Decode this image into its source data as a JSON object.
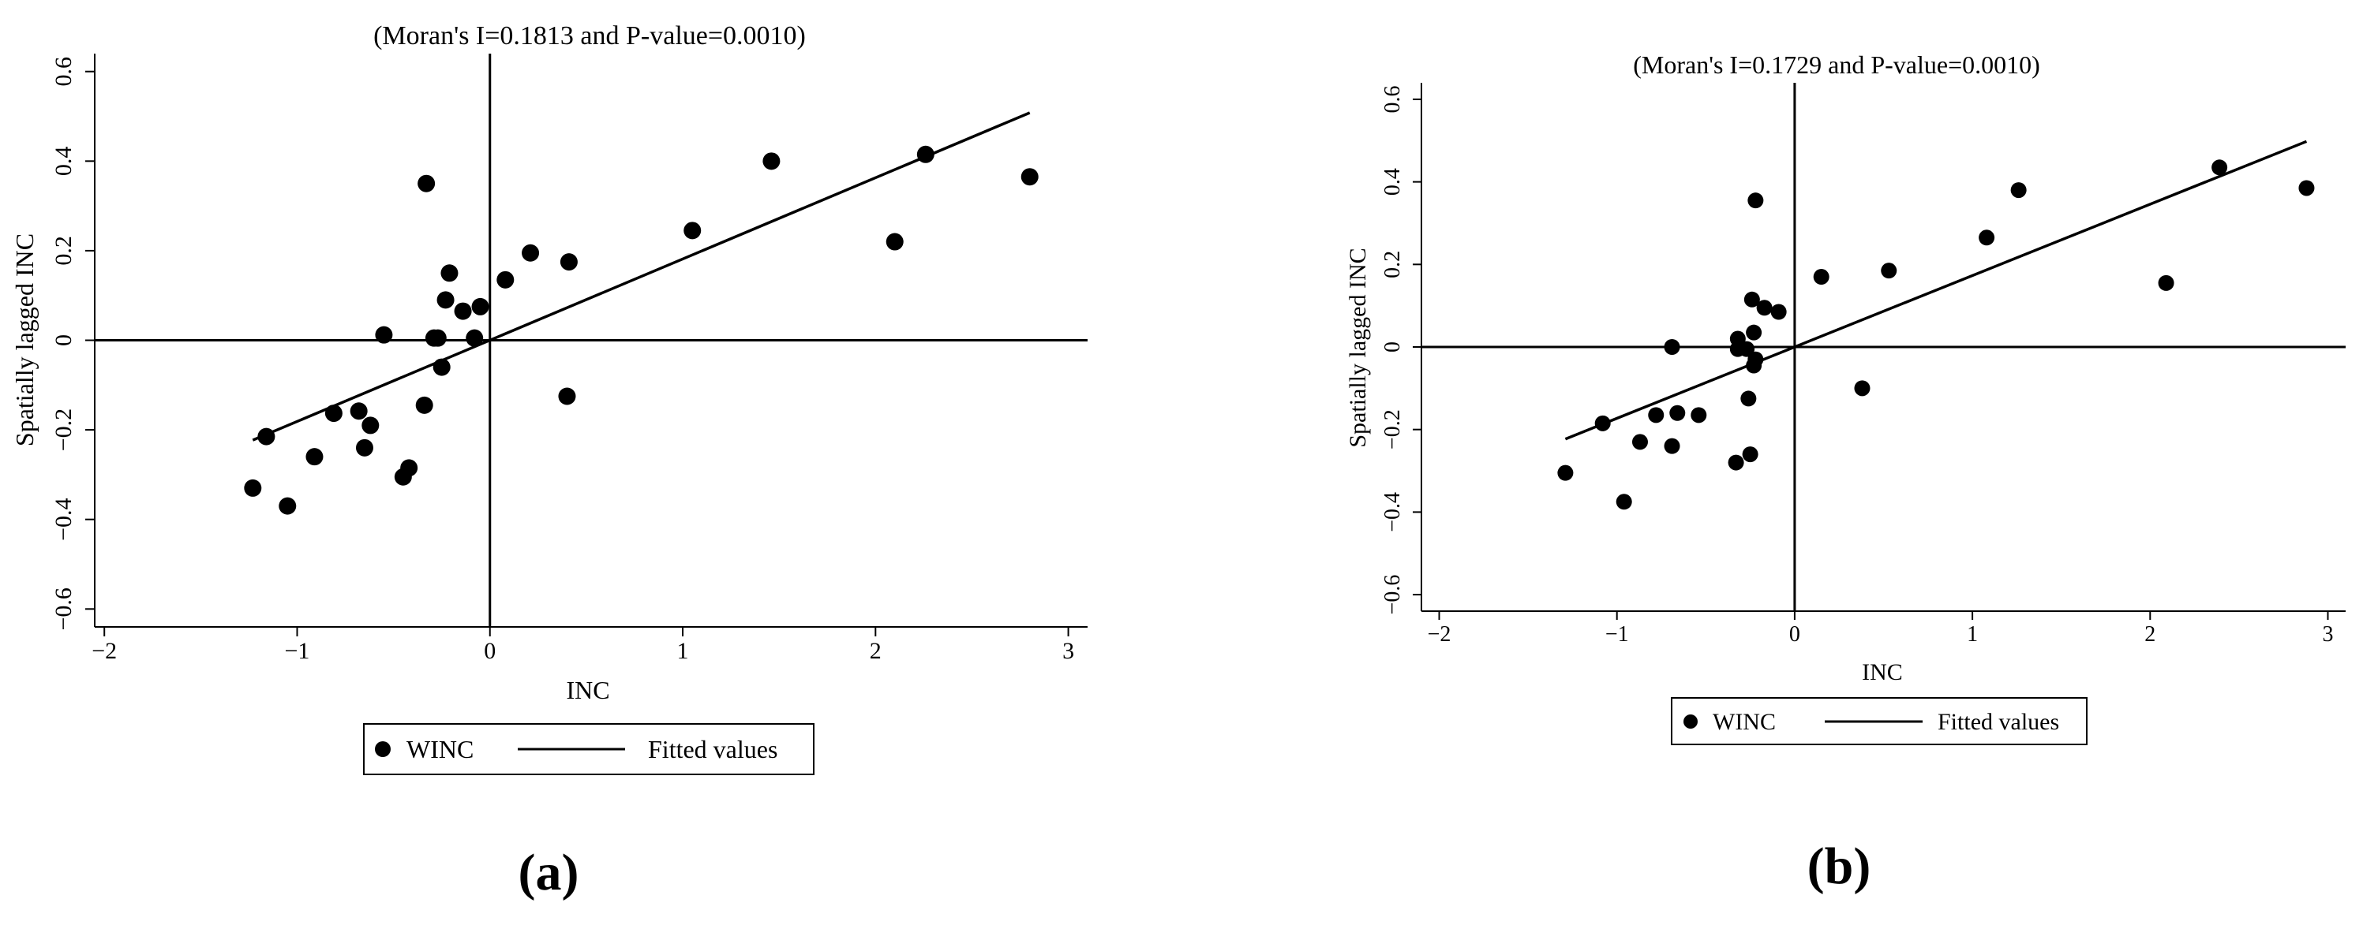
{
  "chart_data": [
    {
      "type": "scatter",
      "panel_label": "(a)",
      "title": "(Moran's I=0.1813 and P-value=0.0010)",
      "xlabel": "INC",
      "ylabel": "Spatially lagged INC",
      "xlim": [
        -2.05,
        3.1
      ],
      "ylim": [
        -0.64,
        0.64
      ],
      "xticks": [
        -2,
        -1,
        0,
        1,
        2,
        3
      ],
      "yticks": [
        -0.6,
        -0.4,
        -0.2,
        0,
        0.2,
        0.4,
        0.6
      ],
      "xtick_labels": [
        "−2",
        "−1",
        "0",
        "1",
        "2",
        "3"
      ],
      "ytick_labels": [
        "−0.6",
        "−0.4",
        "−0.2",
        "0",
        "0.2",
        "0.4",
        "0.6"
      ],
      "reference_lines": {
        "x": 0,
        "y": 0
      },
      "legend": {
        "position": "bottom",
        "entries": [
          "WINC",
          "Fitted values"
        ]
      },
      "series": [
        {
          "name": "WINC",
          "kind": "points",
          "points": [
            [
              -1.23,
              -0.33
            ],
            [
              -1.16,
              -0.215
            ],
            [
              -1.05,
              -0.37
            ],
            [
              -0.91,
              -0.26
            ],
            [
              -0.81,
              -0.163
            ],
            [
              -0.68,
              -0.158
            ],
            [
              -0.65,
              -0.24
            ],
            [
              -0.62,
              -0.19
            ],
            [
              -0.55,
              0.012
            ],
            [
              -0.45,
              -0.305
            ],
            [
              -0.42,
              -0.285
            ],
            [
              -0.34,
              -0.145
            ],
            [
              -0.33,
              0.35
            ],
            [
              -0.29,
              0.005
            ],
            [
              -0.27,
              0.005
            ],
            [
              -0.25,
              -0.06
            ],
            [
              -0.23,
              0.09
            ],
            [
              -0.21,
              0.15
            ],
            [
              -0.14,
              0.065
            ],
            [
              -0.08,
              0.005
            ],
            [
              -0.05,
              0.075
            ],
            [
              0.08,
              0.135
            ],
            [
              0.21,
              0.195
            ],
            [
              0.4,
              -0.125
            ],
            [
              0.41,
              0.175
            ],
            [
              1.05,
              0.245
            ],
            [
              1.46,
              0.4
            ],
            [
              2.1,
              0.22
            ],
            [
              2.26,
              0.415
            ],
            [
              2.8,
              0.365
            ]
          ]
        },
        {
          "name": "Fitted values",
          "kind": "line",
          "x": [
            -1.23,
            2.8
          ],
          "y": [
            -0.223,
            0.508
          ]
        }
      ]
    },
    {
      "type": "scatter",
      "panel_label": "(b)",
      "title": "(Moran's I=0.1729 and P-value=0.0010)",
      "xlabel": "INC",
      "ylabel": "Spatially lagged INC",
      "xlim": [
        -2.1,
        3.1
      ],
      "ylim": [
        -0.64,
        0.64
      ],
      "xticks": [
        -2,
        -1,
        0,
        1,
        2,
        3
      ],
      "yticks": [
        -0.6,
        -0.4,
        -0.2,
        0,
        0.2,
        0.4,
        0.6
      ],
      "xtick_labels": [
        "−2",
        "−1",
        "0",
        "1",
        "2",
        "3"
      ],
      "ytick_labels": [
        "−0.6",
        "−0.4",
        "−0.2",
        "0",
        "0.2",
        "0.4",
        "0.6"
      ],
      "reference_lines": {
        "x": 0,
        "y": 0
      },
      "legend": {
        "position": "bottom",
        "entries": [
          "WINC",
          "Fitted values"
        ]
      },
      "series": [
        {
          "name": "WINC",
          "kind": "points",
          "points": [
            [
              -1.29,
              -0.305
            ],
            [
              -1.08,
              -0.185
            ],
            [
              -0.96,
              -0.375
            ],
            [
              -0.87,
              -0.23
            ],
            [
              -0.78,
              -0.165
            ],
            [
              -0.69,
              0.0
            ],
            [
              -0.69,
              -0.24
            ],
            [
              -0.66,
              -0.16
            ],
            [
              -0.54,
              -0.165
            ],
            [
              -0.33,
              -0.28
            ],
            [
              -0.32,
              -0.005
            ],
            [
              -0.32,
              0.02
            ],
            [
              -0.27,
              -0.005
            ],
            [
              -0.26,
              -0.125
            ],
            [
              -0.25,
              -0.26
            ],
            [
              -0.24,
              0.115
            ],
            [
              -0.23,
              0.035
            ],
            [
              -0.23,
              -0.045
            ],
            [
              -0.22,
              0.355
            ],
            [
              -0.22,
              -0.03
            ],
            [
              -0.17,
              0.095
            ],
            [
              -0.09,
              0.085
            ],
            [
              0.15,
              0.17
            ],
            [
              0.38,
              -0.1
            ],
            [
              0.53,
              0.185
            ],
            [
              1.08,
              0.265
            ],
            [
              1.26,
              0.38
            ],
            [
              2.09,
              0.155
            ],
            [
              2.39,
              0.435
            ],
            [
              2.88,
              0.385
            ]
          ]
        },
        {
          "name": "Fitted values",
          "kind": "line",
          "x": [
            -1.29,
            2.88
          ],
          "y": [
            -0.223,
            0.498
          ]
        }
      ]
    }
  ]
}
